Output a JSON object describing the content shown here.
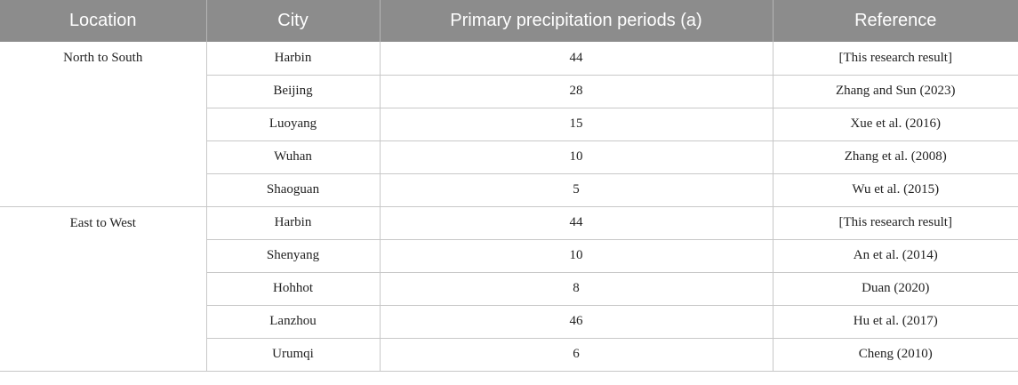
{
  "table": {
    "headers": [
      "Location",
      "City",
      "Primary precipitation periods (a)",
      "Reference"
    ],
    "groups": [
      {
        "location": "North to South",
        "rows": [
          {
            "city": "Harbin",
            "period": "44",
            "reference": "[This research result]"
          },
          {
            "city": "Beijing",
            "period": "28",
            "reference": "Zhang and Sun (2023)"
          },
          {
            "city": "Luoyang",
            "period": "15",
            "reference": "Xue et al. (2016)"
          },
          {
            "city": "Wuhan",
            "period": "10",
            "reference": "Zhang et al. (2008)"
          },
          {
            "city": "Shaoguan",
            "period": "5",
            "reference": "Wu et al. (2015)"
          }
        ]
      },
      {
        "location": "East to West",
        "rows": [
          {
            "city": "Harbin",
            "period": "44",
            "reference": "[This research result]"
          },
          {
            "city": "Shenyang",
            "period": "10",
            "reference": "An et al. (2014)"
          },
          {
            "city": "Hohhot",
            "period": "8",
            "reference": "Duan (2020)"
          },
          {
            "city": "Lanzhou",
            "period": "46",
            "reference": "Hu et al. (2017)"
          },
          {
            "city": "Urumqi",
            "period": "6",
            "reference": "Cheng (2010)"
          }
        ]
      }
    ]
  }
}
